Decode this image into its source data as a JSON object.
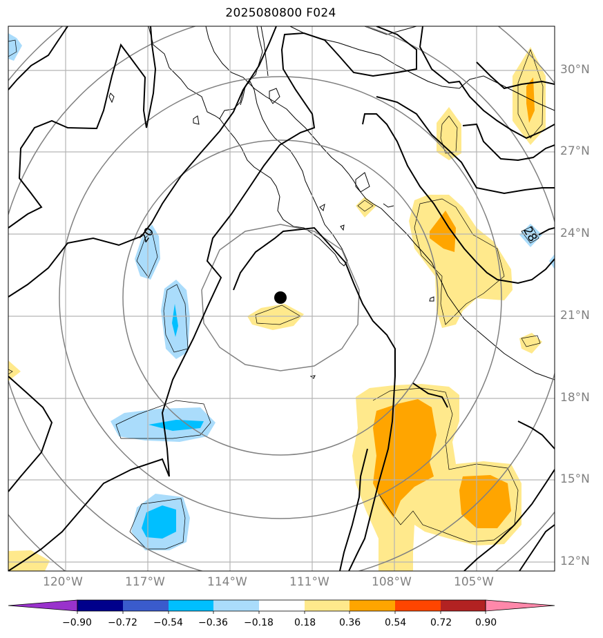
{
  "title": "2025080800 F024",
  "map": {
    "lon_labels": [
      {
        "value": -120,
        "text": "120°W"
      },
      {
        "value": -117,
        "text": "117°W"
      },
      {
        "value": -114,
        "text": "114°W"
      },
      {
        "value": -111,
        "text": "111°W"
      },
      {
        "value": -108,
        "text": "108°W"
      },
      {
        "value": -105,
        "text": "105°W"
      }
    ],
    "lat_labels": [
      {
        "value": 30,
        "text": "30°N"
      },
      {
        "value": 27,
        "text": "27°N"
      },
      {
        "value": 24,
        "text": "24°N"
      },
      {
        "value": 21,
        "text": "21°N"
      },
      {
        "value": 18,
        "text": "18°N"
      },
      {
        "value": 15,
        "text": "15°N"
      },
      {
        "value": 12,
        "text": "12°N"
      }
    ],
    "contour_labels": [
      {
        "text": "20",
        "lon": -116.9,
        "lat": 23.9
      },
      {
        "text": "28",
        "lon": -102.9,
        "lat": 23.9
      }
    ],
    "center_marker": {
      "lon": -112.3,
      "lat": 21.6
    }
  },
  "colorbar": {
    "bounds": [
      -0.9,
      -0.72,
      -0.54,
      -0.36,
      -0.18,
      0.18,
      0.36,
      0.54,
      0.72,
      0.9
    ],
    "tick_labels": [
      "−0.90",
      "−0.72",
      "−0.54",
      "−0.36",
      "−0.18",
      "0.18",
      "0.36",
      "0.54",
      "0.72",
      "0.90"
    ],
    "colors": [
      "#9932cc",
      "#00008b",
      "#3a5bcc",
      "#00bfff",
      "#aadcfb",
      "#ffffff",
      "#ffe98c",
      "#ffa500",
      "#ff4500",
      "#b22222",
      "#ff88aa"
    ]
  }
}
